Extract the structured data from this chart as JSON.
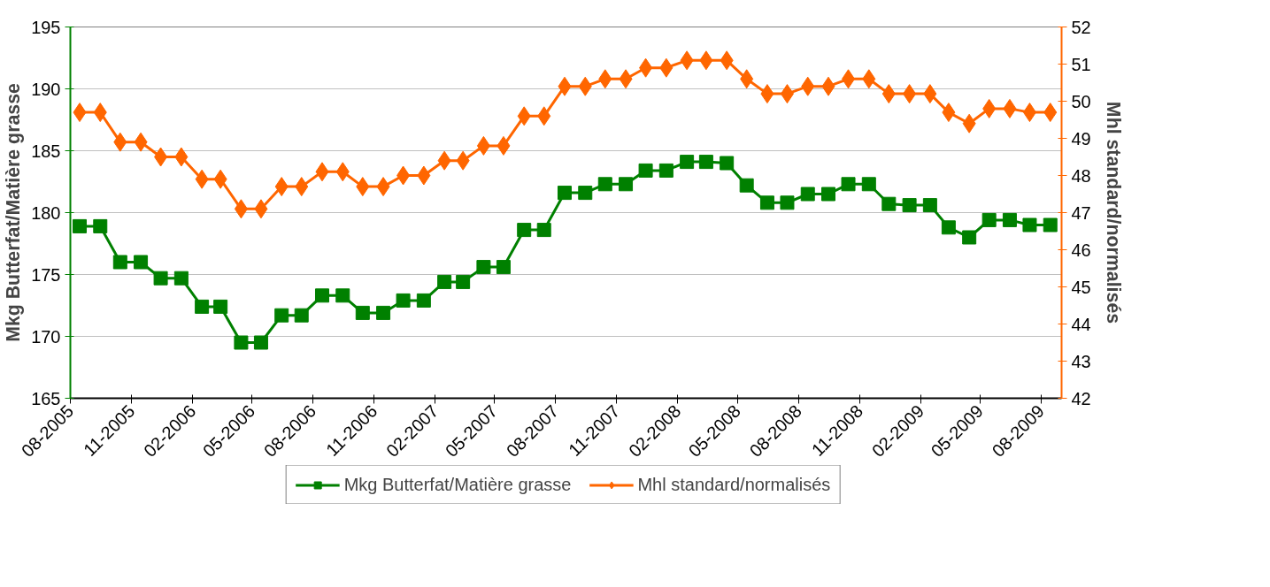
{
  "chart_data": {
    "type": "line",
    "ylabel": "Mkg Butterfat/Matière grasse",
    "y2label": "Mhl standard/normalisés",
    "x": [
      "2005-08-15",
      "2005-09-15",
      "2005-10-15",
      "2005-11-15",
      "2005-12-15",
      "2006-01-15",
      "2006-02-15",
      "2006-03-15",
      "2006-04-15",
      "2006-05-15",
      "2006-06-15",
      "2006-07-15",
      "2006-08-15",
      "2006-09-15",
      "2006-10-15",
      "2006-11-15",
      "2006-12-15",
      "2007-01-15",
      "2007-02-15",
      "2007-03-15",
      "2007-04-15",
      "2007-05-15",
      "2007-06-15",
      "2007-07-15",
      "2007-08-15",
      "2007-09-15",
      "2007-10-15",
      "2007-11-15",
      "2007-12-15",
      "2008-01-15",
      "2008-02-15",
      "2008-03-15",
      "2008-04-15",
      "2008-05-15",
      "2008-06-15",
      "2008-07-15",
      "2008-08-15",
      "2008-09-15",
      "2008-10-15",
      "2008-11-15",
      "2008-12-15",
      "2009-01-15",
      "2009-02-15",
      "2009-03-15",
      "2009-04-15",
      "2009-05-15",
      "2009-06-15",
      "2009-07-15",
      "2009-08-15"
    ],
    "series": [
      {
        "name": "Mkg Butterfat/Matière grasse",
        "color": "#008000",
        "marker": "square",
        "values": [
          178.9,
          178.9,
          176.0,
          176.0,
          174.7,
          174.7,
          172.4,
          172.4,
          169.5,
          169.5,
          171.7,
          171.7,
          173.3,
          173.3,
          171.9,
          171.9,
          172.9,
          172.9,
          174.4,
          174.4,
          175.6,
          175.6,
          178.6,
          178.6,
          181.6,
          181.6,
          182.3,
          182.3,
          183.4,
          183.4,
          184.1,
          184.1,
          184.0,
          182.2,
          180.8,
          180.8,
          181.5,
          181.5,
          182.3,
          182.3,
          180.7,
          180.6,
          180.6,
          178.8,
          178.0,
          179.4,
          179.4,
          179.0,
          179.0
        ]
      },
      {
        "name": "Mhl standard/normalisés",
        "color": "#ff6600",
        "marker": "diamond",
        "axis": "y2",
        "values": [
          49.7,
          49.7,
          48.9,
          48.9,
          48.5,
          48.5,
          47.9,
          47.9,
          47.1,
          47.1,
          47.7,
          47.7,
          48.1,
          48.1,
          47.7,
          47.7,
          48.0,
          48.0,
          48.4,
          48.4,
          48.8,
          48.8,
          49.6,
          49.6,
          50.4,
          50.4,
          50.6,
          50.6,
          50.9,
          50.9,
          51.1,
          51.1,
          51.1,
          50.6,
          50.2,
          50.2,
          50.4,
          50.4,
          50.6,
          50.6,
          50.2,
          50.2,
          50.2,
          49.7,
          49.4,
          49.8,
          49.8,
          49.7,
          49.7
        ]
      }
    ],
    "xlim": [
      "2005-08-01",
      "2009-09-01"
    ],
    "xticks": [
      {
        "value": "2005-08",
        "label": "08-2005"
      },
      {
        "value": "2005-11",
        "label": "11-2005"
      },
      {
        "value": "2006-02",
        "label": "02-2006"
      },
      {
        "value": "2006-05",
        "label": "05-2006"
      },
      {
        "value": "2006-08",
        "label": "08-2006"
      },
      {
        "value": "2006-11",
        "label": "11-2006"
      },
      {
        "value": "2007-02",
        "label": "02-2007"
      },
      {
        "value": "2007-05",
        "label": "05-2007"
      },
      {
        "value": "2007-08",
        "label": "08-2007"
      },
      {
        "value": "2007-11",
        "label": "11-2007"
      },
      {
        "value": "2008-02",
        "label": "02-2008"
      },
      {
        "value": "2008-05",
        "label": "05-2008"
      },
      {
        "value": "2008-08",
        "label": "08-2008"
      },
      {
        "value": "2008-11",
        "label": "11-2008"
      },
      {
        "value": "2009-02",
        "label": "02-2009"
      },
      {
        "value": "2009-05",
        "label": "05-2009"
      },
      {
        "value": "2009-08",
        "label": "08-2009"
      }
    ],
    "ylim": [
      165,
      195
    ],
    "yticks": [
      165,
      170,
      175,
      180,
      185,
      190,
      195
    ],
    "y2lim": [
      42,
      52
    ],
    "y2ticks": [
      42,
      43,
      44,
      45,
      46,
      47,
      48,
      49,
      50,
      51,
      52
    ],
    "grid": "y",
    "legend": "bottom",
    "line_style": "solid"
  }
}
